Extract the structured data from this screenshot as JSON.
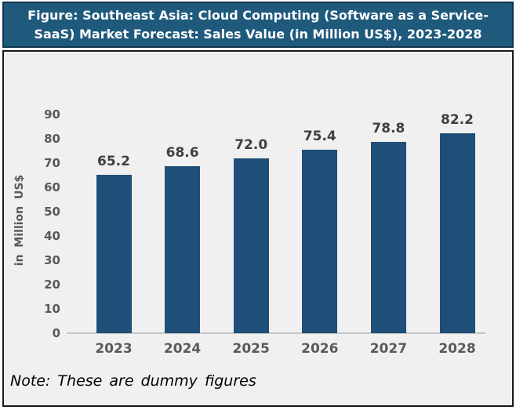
{
  "title": {
    "text": "Figure: Southeast Asia: Cloud Computing (Software as a Service-SaaS) Market Forecast: Sales Value (in Million US$), 2023-2028",
    "lines": [
      "Figure: Southeast Asia: Cloud Computing (Software as a Service-",
      "SaaS) Market Forecast: Sales Value (in Million US$), 2023-2028"
    ]
  },
  "chart_data": {
    "type": "bar",
    "title": "Figure: Southeast Asia: Cloud Computing (Software as a Service-SaaS) Market Forecast: Sales Value (in Million US$), 2023-2028",
    "categories": [
      "2023",
      "2024",
      "2025",
      "2026",
      "2027",
      "2028"
    ],
    "values": [
      65.2,
      68.6,
      72.0,
      75.4,
      78.8,
      82.2
    ],
    "value_labels": [
      "65.2",
      "68.6",
      "72.0",
      "75.4",
      "78.8",
      "82.2"
    ],
    "xlabel": "",
    "ylabel": "in Million US$",
    "ylim": [
      0,
      90
    ],
    "ytick_step": 10,
    "yticks": [
      0,
      10,
      20,
      30,
      40,
      50,
      60,
      70,
      80,
      90
    ],
    "grid": false,
    "legend_position": "none",
    "bar_color": "#1F4E79",
    "plot_background": "#F0F0F0"
  },
  "note": {
    "text": "Note: These are dummy figures"
  },
  "colors": {
    "title_background": "#1F5A7D",
    "title_border": "#12344D",
    "title_text": "#FFFFFF",
    "bar": "#1F4E79",
    "chart_background": "#F0F0F0",
    "chart_border": "#1A1A1A",
    "axis_text": "#595959",
    "data_label_text": "#3F3F3F",
    "axis_line": "#C6C6C6",
    "note_text": "#000000"
  }
}
